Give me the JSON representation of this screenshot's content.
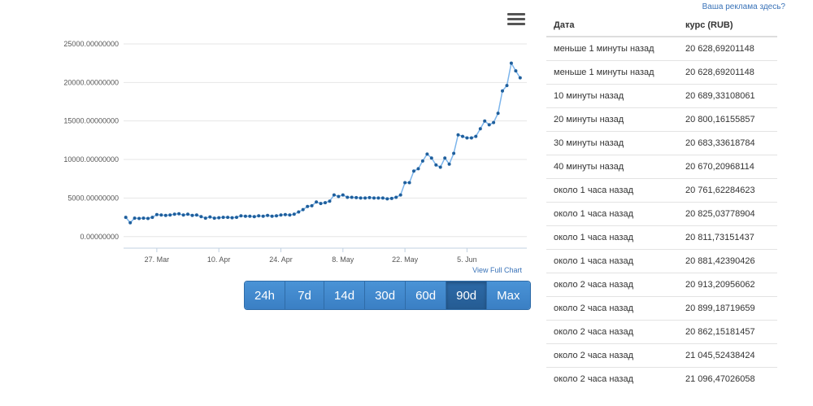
{
  "ad_link": "Ваша реклама здесь?",
  "chart_data": {
    "type": "line",
    "y_ticks": [
      "25000.00000000",
      "20000.00000000",
      "15000.00000000",
      "10000.00000000",
      "5000.00000000",
      "0.00000000"
    ],
    "y_tick_values": [
      25000,
      20000,
      15000,
      10000,
      5000,
      0
    ],
    "x_ticks": [
      "27. Mar",
      "10. Apr",
      "24. Apr",
      "8. May",
      "22. May",
      "5. Jun"
    ],
    "x_tick_days": [
      7,
      21,
      35,
      49,
      63,
      77
    ],
    "ylim": [
      -1500,
      27000
    ],
    "xlim": [
      -0.5,
      90.5
    ],
    "grid": true,
    "series": [
      {
        "color": "#7cb5ec",
        "marker_color": "#1f5f9c",
        "x": [
          0,
          1,
          2,
          3,
          4,
          5,
          6,
          7,
          8,
          9,
          10,
          11,
          12,
          13,
          14,
          15,
          16,
          17,
          18,
          19,
          20,
          21,
          22,
          23,
          24,
          25,
          26,
          27,
          28,
          29,
          30,
          31,
          32,
          33,
          34,
          35,
          36,
          37,
          38,
          39,
          40,
          41,
          42,
          43,
          44,
          45,
          46,
          47,
          48,
          49,
          50,
          51,
          52,
          53,
          54,
          55,
          56,
          57,
          58,
          59,
          60,
          61,
          62,
          63,
          64,
          65,
          66,
          67,
          68,
          69,
          70,
          71,
          72,
          73,
          74,
          75,
          76,
          77,
          78,
          79,
          80,
          81,
          82,
          83,
          84,
          85,
          86,
          87,
          88,
          89
        ],
        "y": [
          2500,
          1800,
          2400,
          2350,
          2400,
          2350,
          2500,
          2850,
          2800,
          2750,
          2800,
          2900,
          2950,
          2800,
          2900,
          2750,
          2800,
          2600,
          2400,
          2550,
          2400,
          2450,
          2500,
          2500,
          2450,
          2500,
          2700,
          2650,
          2650,
          2600,
          2700,
          2650,
          2750,
          2650,
          2700,
          2800,
          2850,
          2800,
          2900,
          3200,
          3500,
          3900,
          4000,
          4500,
          4300,
          4400,
          4600,
          5400,
          5200,
          5400,
          5100,
          5100,
          5050,
          5000,
          5000,
          5050,
          5000,
          5000,
          5000,
          4900,
          4950,
          5100,
          5400,
          7000,
          7000,
          8500,
          8800,
          9800,
          10700,
          10200,
          9300,
          9000,
          10200,
          9400,
          10800,
          13200,
          13000,
          12800,
          12800,
          13000,
          14000,
          15000,
          14500,
          14800,
          16000,
          18900,
          19600,
          22500,
          21500,
          20600
        ]
      }
    ]
  },
  "chart_controls": {
    "full_chart": "View Full Chart",
    "ranges": [
      "24h",
      "7d",
      "14d",
      "30d",
      "60d",
      "90d",
      "Max"
    ],
    "active_range": "90d"
  },
  "table": {
    "headers": [
      "Дата",
      "курс (RUB)"
    ],
    "rows": [
      [
        "меньше 1 минуты назад",
        "20 628,69201148"
      ],
      [
        "меньше 1 минуты назад",
        "20 628,69201148"
      ],
      [
        "10 минуты назад",
        "20 689,33108061"
      ],
      [
        "20 минуты назад",
        "20 800,16155857"
      ],
      [
        "30 минуты назад",
        "20 683,33618784"
      ],
      [
        "40 минуты назад",
        "20 670,20968114"
      ],
      [
        "около 1 часа назад",
        "20 761,62284623"
      ],
      [
        "около 1 часа назад",
        "20 825,03778904"
      ],
      [
        "около 1 часа назад",
        "20 811,73151437"
      ],
      [
        "около 1 часа назад",
        "20 881,42390426"
      ],
      [
        "около 2 часа назад",
        "20 913,20956062"
      ],
      [
        "около 2 часа назад",
        "20 899,18719659"
      ],
      [
        "около 2 часа назад",
        "20 862,15181457"
      ],
      [
        "около 2 часа назад",
        "21 045,52438424"
      ],
      [
        "около 2 часа назад",
        "21 096,47026058"
      ]
    ]
  }
}
